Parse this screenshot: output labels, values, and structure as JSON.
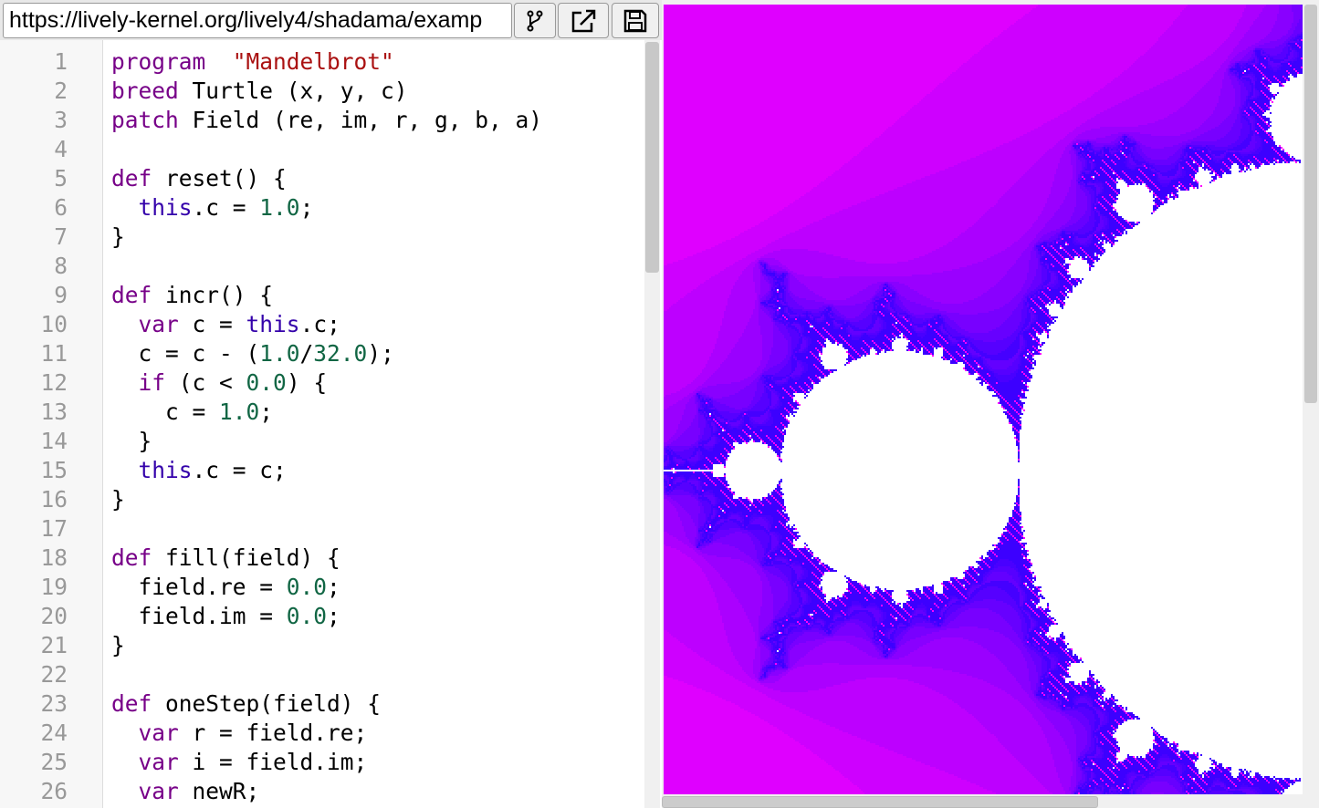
{
  "toolbar": {
    "url": "https://lively-kernel.org/lively4/shadama/examp",
    "buttons": [
      {
        "icon": "branch-icon"
      },
      {
        "icon": "external-link-icon"
      },
      {
        "icon": "save-icon"
      }
    ]
  },
  "colors": {
    "keyword": "#770088",
    "string": "#aa1111",
    "number": "#116644",
    "this": "#3300aa",
    "fractal_outer": "#ff00ff",
    "fractal_edge": "#0000ff",
    "fractal_inside": "#ffffff"
  },
  "code": [
    [
      [
        "kw",
        "program"
      ],
      [
        "",
        "  "
      ],
      [
        "str",
        "\"Mandelbrot\""
      ]
    ],
    [
      [
        "kw",
        "breed"
      ],
      [
        "",
        " Turtle (x, y, c)"
      ]
    ],
    [
      [
        "kw",
        "patch"
      ],
      [
        "",
        " Field (re, im, r, g, b, a)"
      ]
    ],
    [],
    [
      [
        "kw",
        "def"
      ],
      [
        "",
        " reset() {"
      ]
    ],
    [
      [
        "",
        "  "
      ],
      [
        "v2",
        "this"
      ],
      [
        "",
        ".c = "
      ],
      [
        "num",
        "1.0"
      ],
      [
        "",
        ";"
      ]
    ],
    [
      [
        "",
        "}"
      ]
    ],
    [],
    [
      [
        "kw",
        "def"
      ],
      [
        "",
        " incr() {"
      ]
    ],
    [
      [
        "",
        "  "
      ],
      [
        "kw",
        "var"
      ],
      [
        "",
        " c = "
      ],
      [
        "v2",
        "this"
      ],
      [
        "",
        ".c;"
      ]
    ],
    [
      [
        "",
        "  c = c - ("
      ],
      [
        "num",
        "1.0"
      ],
      [
        "",
        "/"
      ],
      [
        "num",
        "32.0"
      ],
      [
        "",
        ");"
      ]
    ],
    [
      [
        "",
        "  "
      ],
      [
        "kw",
        "if"
      ],
      [
        "",
        " (c < "
      ],
      [
        "num",
        "0.0"
      ],
      [
        "",
        ") {"
      ]
    ],
    [
      [
        "",
        "    c = "
      ],
      [
        "num",
        "1.0"
      ],
      [
        "",
        ";"
      ]
    ],
    [
      [
        "",
        "  }"
      ]
    ],
    [
      [
        "",
        "  "
      ],
      [
        "v2",
        "this"
      ],
      [
        "",
        ".c = c;"
      ]
    ],
    [
      [
        "",
        "}"
      ]
    ],
    [],
    [
      [
        "kw",
        "def"
      ],
      [
        "",
        " fill(field) {"
      ]
    ],
    [
      [
        "",
        "  field.re = "
      ],
      [
        "num",
        "0.0"
      ],
      [
        "",
        ";"
      ]
    ],
    [
      [
        "",
        "  field.im = "
      ],
      [
        "num",
        "0.0"
      ],
      [
        "",
        ";"
      ]
    ],
    [
      [
        "",
        "}"
      ]
    ],
    [],
    [
      [
        "kw",
        "def"
      ],
      [
        "",
        " oneStep(field) {"
      ]
    ],
    [
      [
        "",
        "  "
      ],
      [
        "kw",
        "var"
      ],
      [
        "",
        " r = field.re;"
      ]
    ],
    [
      [
        "",
        "  "
      ],
      [
        "kw",
        "var"
      ],
      [
        "",
        " i = field.im;"
      ]
    ],
    [
      [
        "",
        "  "
      ],
      [
        "kw",
        "var"
      ],
      [
        "",
        " newR;"
      ]
    ]
  ]
}
